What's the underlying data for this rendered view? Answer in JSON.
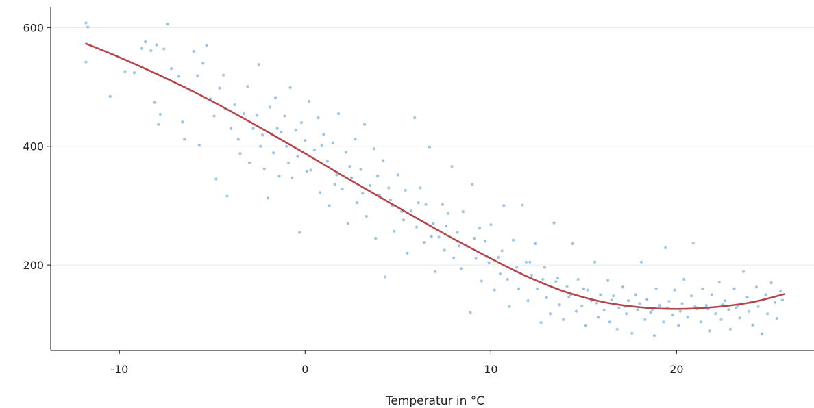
{
  "chart_data": {
    "type": "scatter",
    "title": "",
    "xlabel": "Temperatur in °C",
    "ylabel": "",
    "xlim": [
      -13.7,
      27.4
    ],
    "ylim": [
      56,
      635
    ],
    "x_ticks": [
      -10,
      0,
      10,
      20
    ],
    "y_ticks": [
      200,
      400,
      600
    ],
    "y_grid": true,
    "x_grid": false,
    "legend": "none",
    "point_color": "#5b9bd5",
    "line_color": "#b5444b",
    "series": [
      {
        "kind": "scatter",
        "points": [
          [
            -11.8,
            608
          ],
          [
            -11.7,
            601
          ],
          [
            -11.8,
            542
          ],
          [
            -10.5,
            484
          ],
          [
            -9.7,
            526
          ],
          [
            -9.2,
            524
          ],
          [
            -8.8,
            565
          ],
          [
            -8.6,
            576
          ],
          [
            -8.3,
            561
          ],
          [
            -8.1,
            474
          ],
          [
            -8.0,
            571
          ],
          [
            -7.9,
            437
          ],
          [
            -7.8,
            454
          ],
          [
            -7.6,
            564
          ],
          [
            -7.4,
            606
          ],
          [
            -7.2,
            531
          ],
          [
            -6.8,
            518
          ],
          [
            -6.6,
            441
          ],
          [
            -6.5,
            412
          ],
          [
            -6.2,
            495
          ],
          [
            -6.0,
            560
          ],
          [
            -5.8,
            519
          ],
          [
            -5.7,
            402
          ],
          [
            -5.5,
            540
          ],
          [
            -5.3,
            570
          ],
          [
            -5.1,
            480
          ],
          [
            -4.9,
            451
          ],
          [
            -4.8,
            345
          ],
          [
            -4.6,
            498
          ],
          [
            -4.4,
            520
          ],
          [
            -4.3,
            463
          ],
          [
            -4.2,
            316
          ],
          [
            -4.0,
            430
          ],
          [
            -3.8,
            470
          ],
          [
            -3.6,
            412
          ],
          [
            -3.5,
            388
          ],
          [
            -3.3,
            455
          ],
          [
            -3.1,
            501
          ],
          [
            -3.0,
            372
          ],
          [
            -2.8,
            430
          ],
          [
            -2.6,
            452
          ],
          [
            -2.5,
            538
          ],
          [
            -2.3,
            419
          ],
          [
            -2.2,
            362
          ],
          [
            -2.0,
            313
          ],
          [
            -1.9,
            466
          ],
          [
            -1.7,
            389
          ],
          [
            -1.6,
            482
          ],
          [
            -1.4,
            350
          ],
          [
            -1.3,
            424
          ],
          [
            -1.1,
            451
          ],
          [
            -1.0,
            400
          ],
          [
            -0.8,
            499
          ],
          [
            -0.7,
            347
          ],
          [
            -0.5,
            427
          ],
          [
            -0.4,
            383
          ],
          [
            -0.3,
            255
          ],
          [
            -0.2,
            440
          ],
          [
            0.0,
            410
          ],
          [
            0.2,
            476
          ],
          [
            0.3,
            360
          ],
          [
            0.5,
            394
          ],
          [
            0.7,
            448
          ],
          [
            0.8,
            322
          ],
          [
            1.0,
            420
          ],
          [
            1.2,
            375
          ],
          [
            1.3,
            300
          ],
          [
            1.5,
            406
          ],
          [
            1.7,
            352
          ],
          [
            1.8,
            455
          ],
          [
            2.0,
            328
          ],
          [
            2.2,
            390
          ],
          [
            2.3,
            270
          ],
          [
            2.5,
            347
          ],
          [
            2.7,
            412
          ],
          [
            2.8,
            305
          ],
          [
            3.0,
            361
          ],
          [
            3.2,
            437
          ],
          [
            3.3,
            282
          ],
          [
            3.5,
            334
          ],
          [
            3.7,
            396
          ],
          [
            3.8,
            245
          ],
          [
            4.0,
            318
          ],
          [
            4.2,
            376
          ],
          [
            4.3,
            180
          ],
          [
            4.5,
            330
          ],
          [
            4.7,
            300
          ],
          [
            4.8,
            257
          ],
          [
            5.0,
            352
          ],
          [
            5.2,
            290
          ],
          [
            5.4,
            326
          ],
          [
            5.5,
            220
          ],
          [
            5.7,
            291
          ],
          [
            5.9,
            448
          ],
          [
            6.0,
            264
          ],
          [
            6.2,
            330
          ],
          [
            6.4,
            238
          ],
          [
            6.5,
            302
          ],
          [
            6.7,
            399
          ],
          [
            6.9,
            270
          ],
          [
            7.0,
            189
          ],
          [
            7.2,
            247
          ],
          [
            7.4,
            302
          ],
          [
            7.5,
            225
          ],
          [
            7.7,
            287
          ],
          [
            7.9,
            366
          ],
          [
            8.0,
            212
          ],
          [
            8.2,
            255
          ],
          [
            8.4,
            194
          ],
          [
            8.5,
            290
          ],
          [
            8.7,
            232
          ],
          [
            8.9,
            120
          ],
          [
            9.0,
            336
          ],
          [
            9.2,
            211
          ],
          [
            9.4,
            262
          ],
          [
            9.5,
            173
          ],
          [
            9.7,
            240
          ],
          [
            9.9,
            204
          ],
          [
            10.0,
            268
          ],
          [
            10.2,
            158
          ],
          [
            10.4,
            213
          ],
          [
            10.5,
            185
          ],
          [
            10.7,
            300
          ],
          [
            10.9,
            176
          ],
          [
            11.0,
            130
          ],
          [
            11.2,
            242
          ],
          [
            11.4,
            196
          ],
          [
            11.5,
            160
          ],
          [
            11.7,
            301
          ],
          [
            11.9,
            205
          ],
          [
            12.0,
            140
          ],
          [
            12.2,
            183
          ],
          [
            12.4,
            236
          ],
          [
            12.5,
            160
          ],
          [
            12.7,
            103
          ],
          [
            12.9,
            196
          ],
          [
            13.0,
            145
          ],
          [
            13.2,
            118
          ],
          [
            13.4,
            271
          ],
          [
            13.6,
            178
          ],
          [
            13.7,
            133
          ],
          [
            13.9,
            108
          ],
          [
            14.1,
            164
          ],
          [
            14.2,
            146
          ],
          [
            14.4,
            236
          ],
          [
            14.6,
            122
          ],
          [
            14.7,
            176
          ],
          [
            14.9,
            131
          ],
          [
            15.1,
            98
          ],
          [
            15.2,
            158
          ],
          [
            15.4,
            140
          ],
          [
            15.6,
            205
          ],
          [
            15.8,
            112
          ],
          [
            15.9,
            150
          ],
          [
            16.1,
            124
          ],
          [
            16.3,
            174
          ],
          [
            16.4,
            104
          ],
          [
            16.6,
            148
          ],
          [
            16.8,
            92
          ],
          [
            16.9,
            128
          ],
          [
            17.1,
            163
          ],
          [
            17.3,
            118
          ],
          [
            17.4,
            140
          ],
          [
            17.6,
            85
          ],
          [
            17.8,
            150
          ],
          [
            17.9,
            125
          ],
          [
            18.1,
            205
          ],
          [
            18.3,
            108
          ],
          [
            18.4,
            142
          ],
          [
            18.6,
            120
          ],
          [
            18.8,
            81
          ],
          [
            18.9,
            160
          ],
          [
            19.1,
            132
          ],
          [
            19.3,
            104
          ],
          [
            19.4,
            229
          ],
          [
            19.6,
            139
          ],
          [
            19.8,
            116
          ],
          [
            19.9,
            158
          ],
          [
            20.1,
            98
          ],
          [
            20.3,
            135
          ],
          [
            20.4,
            176
          ],
          [
            20.6,
            112
          ],
          [
            20.8,
            148
          ],
          [
            20.9,
            237
          ],
          [
            21.1,
            126
          ],
          [
            21.3,
            104
          ],
          [
            21.4,
            160
          ],
          [
            21.6,
            132
          ],
          [
            21.8,
            89
          ],
          [
            21.9,
            150
          ],
          [
            22.1,
            118
          ],
          [
            22.3,
            171
          ],
          [
            22.4,
            108
          ],
          [
            22.6,
            140
          ],
          [
            22.8,
            125
          ],
          [
            22.9,
            92
          ],
          [
            23.1,
            160
          ],
          [
            23.3,
            132
          ],
          [
            23.4,
            111
          ],
          [
            23.6,
            189
          ],
          [
            23.8,
            146
          ],
          [
            23.9,
            122
          ],
          [
            24.1,
            99
          ],
          [
            24.3,
            163
          ],
          [
            24.4,
            130
          ],
          [
            24.6,
            84
          ],
          [
            24.8,
            150
          ],
          [
            24.9,
            118
          ],
          [
            25.1,
            170
          ],
          [
            25.3,
            137
          ],
          [
            25.4,
            110
          ],
          [
            25.6,
            156
          ],
          [
            25.7,
            141
          ],
          [
            -2.4,
            400
          ],
          [
            -1.5,
            430
          ],
          [
            -0.9,
            372
          ],
          [
            0.1,
            358
          ],
          [
            0.9,
            401
          ],
          [
            1.6,
            336
          ],
          [
            2.4,
            366
          ],
          [
            3.1,
            321
          ],
          [
            3.9,
            350
          ],
          [
            4.6,
            310
          ],
          [
            5.3,
            276
          ],
          [
            6.1,
            305
          ],
          [
            6.8,
            248
          ],
          [
            7.6,
            266
          ],
          [
            8.3,
            232
          ],
          [
            9.1,
            245
          ],
          [
            9.8,
            214
          ],
          [
            10.6,
            224
          ],
          [
            11.3,
            190
          ],
          [
            12.1,
            205
          ],
          [
            12.8,
            176
          ],
          [
            13.5,
            172
          ],
          [
            14.3,
            150
          ],
          [
            15.0,
            160
          ],
          [
            15.7,
            136
          ],
          [
            16.5,
            141
          ],
          [
            17.2,
            130
          ],
          [
            18.0,
            135
          ],
          [
            18.7,
            124
          ],
          [
            19.5,
            128
          ],
          [
            20.2,
            122
          ],
          [
            21.0,
            130
          ],
          [
            21.7,
            126
          ],
          [
            22.5,
            133
          ],
          [
            23.2,
            128
          ],
          [
            24.0,
            137
          ]
        ]
      },
      {
        "kind": "line",
        "points": [
          [
            -11.8,
            573
          ],
          [
            -10,
            550
          ],
          [
            -8,
            522
          ],
          [
            -6,
            492
          ],
          [
            -4,
            459
          ],
          [
            -2,
            424
          ],
          [
            0,
            388
          ],
          [
            2,
            351
          ],
          [
            4,
            315
          ],
          [
            6,
            279
          ],
          [
            8,
            244
          ],
          [
            10,
            211
          ],
          [
            12,
            180
          ],
          [
            14,
            155
          ],
          [
            16,
            138
          ],
          [
            18,
            129
          ],
          [
            20,
            126
          ],
          [
            22,
            129
          ],
          [
            24,
            137
          ],
          [
            25.8,
            151
          ]
        ]
      }
    ]
  }
}
